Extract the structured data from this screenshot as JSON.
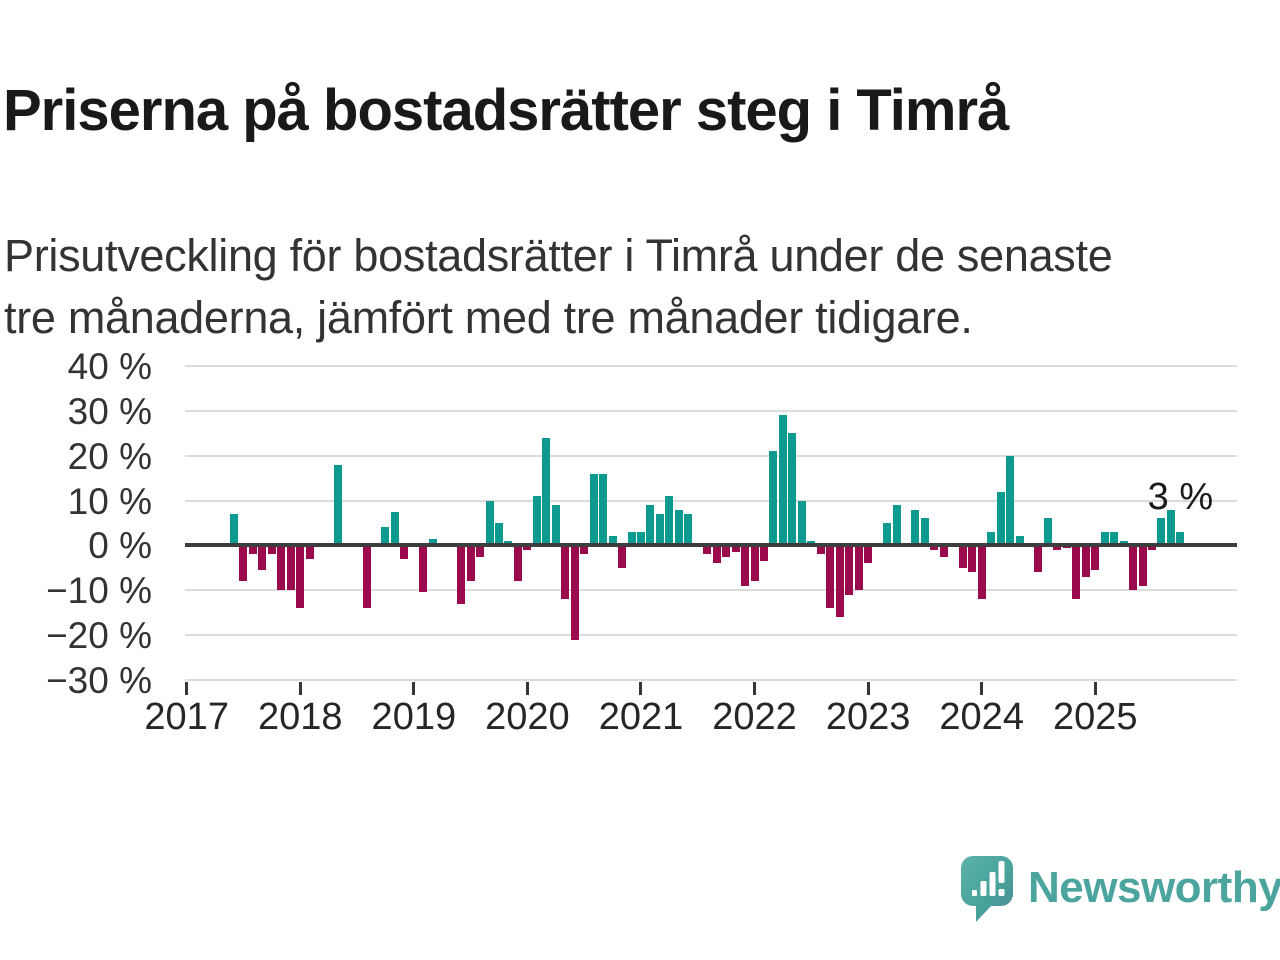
{
  "title": "Priserna på bostadsrätter steg i Timrå",
  "subtitle_lines": [
    "Prisutveckling för bostadsrätter i Timrå under de senaste",
    "tre månaderna, jämfört med tre månader tidigare."
  ],
  "logo": {
    "text": "Newsworthy",
    "color": "#4ba59e"
  },
  "chart_data": {
    "type": "bar",
    "title": "Prisutveckling för bostadsrätter i Timrå, tre månader jämfört med tre månader tidigare",
    "unit": "%",
    "start_month": "2017-01",
    "x_tick_labels": [
      "2017",
      "2018",
      "2019",
      "2020",
      "2021",
      "2022",
      "2023",
      "2024",
      "2025"
    ],
    "y_ticks": [
      40,
      30,
      20,
      10,
      0,
      -10,
      -20,
      -30
    ],
    "y_tick_labels": [
      "40 %",
      "30 %",
      "20 %",
      "10 %",
      "0 %",
      "−10 %",
      "−20 %",
      "−30 %"
    ],
    "ylim": [
      -34,
      42
    ],
    "grid": "horizontal",
    "colors": {
      "positive": "#0d9b91",
      "negative": "#9b0a4d"
    },
    "values": [
      null,
      null,
      null,
      null,
      null,
      7,
      -8,
      -2,
      -5.5,
      -2,
      -10,
      -10,
      -14,
      -3,
      null,
      null,
      18,
      null,
      null,
      -14,
      null,
      4,
      7.5,
      -3,
      null,
      -10.5,
      1.5,
      null,
      null,
      -13,
      -8,
      -2.5,
      10,
      5,
      1,
      -8,
      -1,
      11,
      24,
      9,
      -12,
      -21,
      -2,
      16,
      16,
      2,
      -5,
      3,
      3,
      9,
      7,
      11,
      8,
      7,
      null,
      -2,
      -4,
      -2.5,
      -1.5,
      -9,
      -8,
      -3.5,
      21,
      29,
      25,
      10,
      1,
      -2,
      -14,
      -16,
      -11,
      -10,
      -4,
      null,
      5,
      9,
      null,
      8,
      6,
      -1,
      -2.5,
      null,
      -5,
      -6,
      -12,
      3,
      12,
      20,
      2,
      null,
      -6,
      6,
      -1,
      -0.6,
      -12,
      -7,
      -5.5,
      3,
      3,
      1,
      -10,
      -9,
      -1,
      6,
      8,
      3
    ],
    "annotation": {
      "text": "3 %",
      "month_index": 105
    }
  }
}
